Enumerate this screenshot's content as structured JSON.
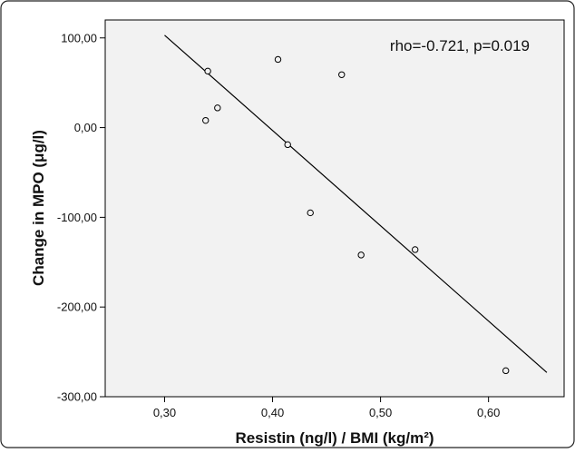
{
  "chart_data": {
    "type": "scatter",
    "title": "",
    "xlabel": "Resistin (ng/l) / BMI (kg/m²)",
    "ylabel": "Change in MPO (μg/l)",
    "annotation": "rho=-0.721, p=0.019",
    "xlim": [
      0.245,
      0.67
    ],
    "ylim": [
      -300,
      120
    ],
    "x_ticks": [
      0.3,
      0.4,
      0.5,
      0.6
    ],
    "x_tick_labels": [
      "0,30",
      "0,40",
      "0,50",
      "0,60"
    ],
    "y_ticks": [
      100,
      0,
      -100,
      -200,
      -300
    ],
    "y_tick_labels": [
      "100,00",
      "0,00",
      "-100,00",
      "-200,00",
      "-300,00"
    ],
    "points": [
      {
        "x": 0.338,
        "y": 8
      },
      {
        "x": 0.34,
        "y": 63
      },
      {
        "x": 0.349,
        "y": 22
      },
      {
        "x": 0.405,
        "y": 76
      },
      {
        "x": 0.414,
        "y": -19
      },
      {
        "x": 0.435,
        "y": -95
      },
      {
        "x": 0.464,
        "y": 59
      },
      {
        "x": 0.482,
        "y": -142
      },
      {
        "x": 0.532,
        "y": -136
      },
      {
        "x": 0.616,
        "y": -271
      }
    ],
    "fit_line": {
      "x": [
        0.3,
        0.654
      ],
      "y": [
        103,
        -273
      ]
    },
    "grid": false,
    "colors": {
      "plot_bg": "#f2f2f2",
      "line": "#000000",
      "marker_edge": "#000000"
    }
  }
}
